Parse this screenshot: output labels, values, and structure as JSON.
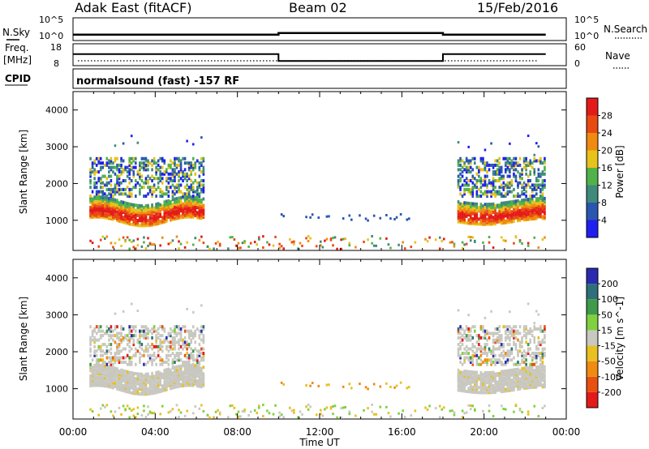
{
  "header": {
    "station": "Adak East (fitACF)",
    "beam": "Beam 02",
    "date": "15/Feb/2016"
  },
  "noise_panel": {
    "left_label": "N.Sky",
    "right_label": "N.Search",
    "tick_top": "10^5",
    "tick_bottom": "10^0"
  },
  "freq_panel": {
    "left_label_1": "Freq.",
    "left_label_2": "[MHz]",
    "right_label": "Nave",
    "left_ticks": [
      "18",
      "8"
    ],
    "right_ticks": [
      "60",
      "0"
    ]
  },
  "cpid_panel": {
    "label": "CPID",
    "text": "normalsound (fast) -157 RF"
  },
  "x_ticks": [
    "00:00",
    "04:00",
    "08:00",
    "12:00",
    "16:00",
    "20:00",
    "00:00"
  ],
  "x_title": "Time UT",
  "power_panel": {
    "ylabel": "Slant Range [km]",
    "yticks": [
      "1000",
      "2000",
      "3000",
      "4000"
    ],
    "colorbar_title": "Power [dB]",
    "colorbar_ticks": [
      "4",
      "8",
      "12",
      "16",
      "20",
      "24",
      "28"
    ],
    "colors": [
      "#1f1ff0",
      "#2a56b0",
      "#3f8a7a",
      "#52b24a",
      "#e7c21a",
      "#f08a10",
      "#e84a12",
      "#e41a1a"
    ]
  },
  "velocity_panel": {
    "ylabel": "Slant Range [km]",
    "yticks": [
      "1000",
      "2000",
      "3000",
      "4000"
    ],
    "colorbar_title": "Velocity [m s^-1]",
    "colorbar_ticks": [
      "200",
      "100",
      "50",
      "15",
      "-15",
      "-50",
      "-100",
      "-200"
    ],
    "colors": [
      "#2a2ab0",
      "#2f6f7a",
      "#3f9a4a",
      "#7fd13f",
      "#c8c8c0",
      "#e8c020",
      "#f08a10",
      "#e85010",
      "#e41a1a"
    ]
  },
  "chart_data": [
    {
      "type": "line",
      "name": "noise",
      "x_hours": [
        0,
        10,
        10,
        18,
        18,
        23
      ],
      "y_log10": [
        0.8,
        0.8,
        1.3,
        1.3,
        0.8,
        0.8
      ]
    },
    {
      "type": "line",
      "name": "frequency",
      "x_hours": [
        0,
        10,
        10,
        18,
        18,
        23
      ],
      "y_mhz": [
        13.5,
        13.5,
        10.0,
        10.0,
        13.5,
        13.5
      ],
      "ylim": [
        8,
        18
      ]
    },
    {
      "type": "heatmap",
      "name": "power",
      "xlim_hours": [
        0,
        24
      ],
      "ylim_km": [
        180,
        4500
      ],
      "clim_db": [
        0,
        32
      ]
    },
    {
      "type": "heatmap",
      "name": "velocity",
      "xlim_hours": [
        0,
        24
      ],
      "ylim_km": [
        180,
        4500
      ],
      "clim_ms": [
        -250,
        250
      ]
    }
  ]
}
